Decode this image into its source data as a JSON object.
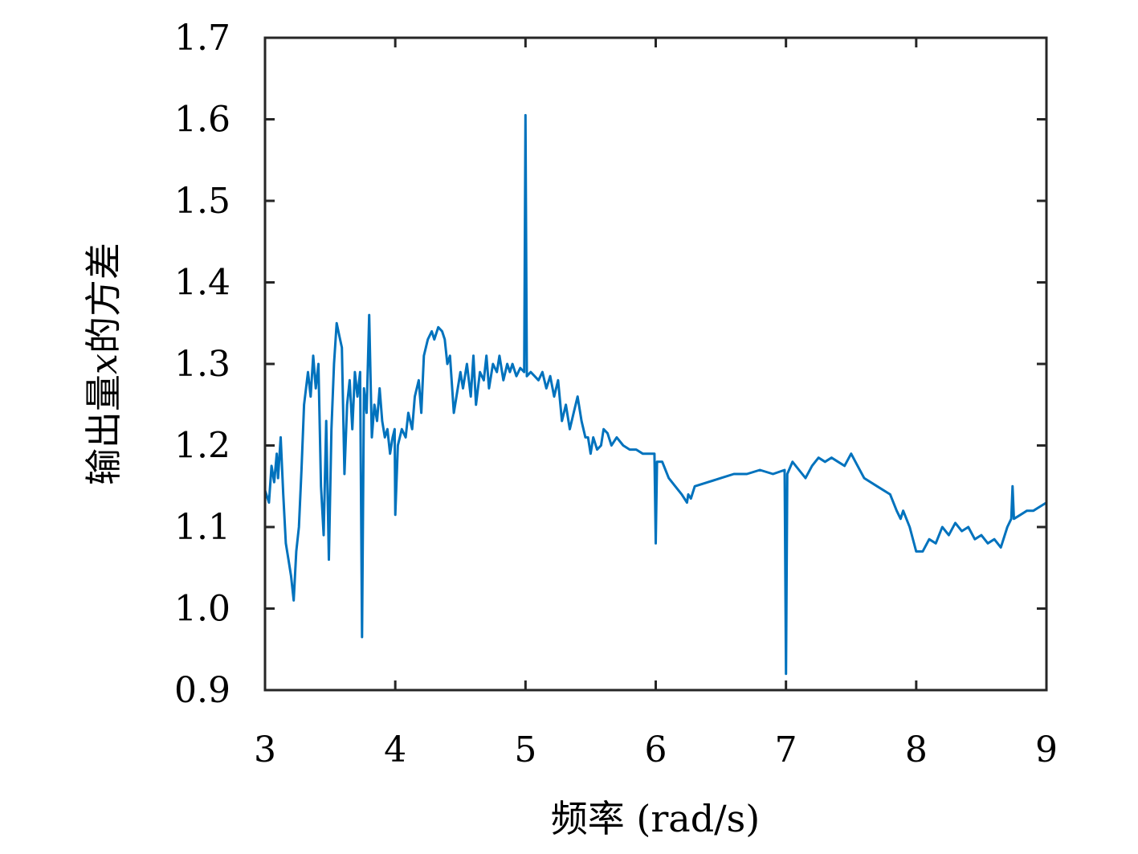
{
  "chart_data": {
    "type": "line",
    "title": "",
    "xlabel": "频率 (rad/s)",
    "ylabel": {
      "prefix": "输出量",
      "var": "x",
      "suffix": "的方差"
    },
    "xlim": [
      3,
      9
    ],
    "ylim": [
      0.9,
      1.7
    ],
    "xticks": [
      3,
      4,
      5,
      6,
      7,
      8,
      9
    ],
    "xtick_labels": [
      "3",
      "4",
      "5",
      "6",
      "7",
      "8",
      "9"
    ],
    "yticks": [
      0.9,
      1.0,
      1.1,
      1.2,
      1.3,
      1.4,
      1.5,
      1.6,
      1.7
    ],
    "ytick_labels": [
      "0.9",
      "1.0",
      "1.1",
      "1.2",
      "1.3",
      "1.4",
      "1.5",
      "1.6",
      "1.7"
    ],
    "grid": false,
    "legend": "none",
    "line_color": "#0072BD",
    "series": [
      {
        "x": [
          3.0,
          3.03,
          3.05,
          3.07,
          3.09,
          3.1,
          3.12,
          3.14,
          3.16,
          3.18,
          3.2,
          3.22,
          3.24,
          3.26,
          3.28,
          3.3,
          3.33,
          3.35,
          3.37,
          3.39,
          3.41,
          3.43,
          3.45,
          3.47,
          3.49,
          3.51,
          3.53,
          3.55,
          3.57,
          3.59,
          3.61,
          3.63,
          3.65,
          3.67,
          3.69,
          3.71,
          3.73,
          3.745,
          3.76,
          3.78,
          3.8,
          3.82,
          3.84,
          3.86,
          3.88,
          3.9,
          3.92,
          3.94,
          3.96,
          3.98,
          3.995,
          4.0,
          4.02,
          4.05,
          4.08,
          4.1,
          4.13,
          4.15,
          4.18,
          4.2,
          4.22,
          4.25,
          4.28,
          4.3,
          4.33,
          4.36,
          4.38,
          4.4,
          4.42,
          4.45,
          4.48,
          4.5,
          4.52,
          4.55,
          4.58,
          4.6,
          4.62,
          4.65,
          4.68,
          4.7,
          4.72,
          4.75,
          4.78,
          4.8,
          4.83,
          4.86,
          4.88,
          4.9,
          4.93,
          4.96,
          4.99,
          5.0,
          5.01,
          5.04,
          5.07,
          5.1,
          5.13,
          5.16,
          5.19,
          5.22,
          5.25,
          5.28,
          5.31,
          5.34,
          5.37,
          5.4,
          5.43,
          5.46,
          5.48,
          5.5,
          5.52,
          5.55,
          5.58,
          5.6,
          5.63,
          5.66,
          5.7,
          5.75,
          5.8,
          5.85,
          5.9,
          5.95,
          5.99,
          6.0,
          6.01,
          6.05,
          6.1,
          6.15,
          6.2,
          6.24,
          6.25,
          6.27,
          6.3,
          6.4,
          6.5,
          6.6,
          6.7,
          6.8,
          6.9,
          6.99,
          7.0,
          7.01,
          7.05,
          7.1,
          7.15,
          7.2,
          7.25,
          7.3,
          7.35,
          7.4,
          7.45,
          7.5,
          7.55,
          7.6,
          7.7,
          7.8,
          7.85,
          7.88,
          7.9,
          7.95,
          8.0,
          8.05,
          8.1,
          8.15,
          8.2,
          8.25,
          8.3,
          8.35,
          8.4,
          8.45,
          8.5,
          8.55,
          8.6,
          8.65,
          8.7,
          8.73,
          8.74,
          8.75,
          8.8,
          8.85,
          8.9,
          8.95,
          9.0
        ],
        "y": [
          1.145,
          1.13,
          1.175,
          1.155,
          1.19,
          1.16,
          1.21,
          1.14,
          1.08,
          1.06,
          1.04,
          1.01,
          1.07,
          1.1,
          1.17,
          1.25,
          1.29,
          1.26,
          1.31,
          1.27,
          1.3,
          1.15,
          1.09,
          1.23,
          1.06,
          1.22,
          1.3,
          1.35,
          1.335,
          1.32,
          1.165,
          1.25,
          1.28,
          1.22,
          1.29,
          1.26,
          1.29,
          0.965,
          1.27,
          1.24,
          1.36,
          1.21,
          1.25,
          1.23,
          1.27,
          1.23,
          1.21,
          1.22,
          1.19,
          1.21,
          1.22,
          1.115,
          1.2,
          1.22,
          1.21,
          1.24,
          1.22,
          1.26,
          1.28,
          1.24,
          1.31,
          1.33,
          1.34,
          1.33,
          1.345,
          1.34,
          1.33,
          1.3,
          1.31,
          1.24,
          1.27,
          1.29,
          1.27,
          1.3,
          1.26,
          1.31,
          1.25,
          1.29,
          1.28,
          1.31,
          1.27,
          1.3,
          1.29,
          1.31,
          1.28,
          1.3,
          1.29,
          1.3,
          1.285,
          1.295,
          1.29,
          1.605,
          1.285,
          1.29,
          1.285,
          1.28,
          1.29,
          1.27,
          1.285,
          1.26,
          1.28,
          1.23,
          1.25,
          1.22,
          1.24,
          1.26,
          1.23,
          1.21,
          1.21,
          1.19,
          1.21,
          1.195,
          1.2,
          1.22,
          1.215,
          1.2,
          1.21,
          1.2,
          1.195,
          1.195,
          1.19,
          1.19,
          1.19,
          1.08,
          1.18,
          1.18,
          1.16,
          1.15,
          1.14,
          1.13,
          1.14,
          1.135,
          1.15,
          1.155,
          1.16,
          1.165,
          1.165,
          1.17,
          1.165,
          1.17,
          0.92,
          1.165,
          1.18,
          1.17,
          1.16,
          1.175,
          1.185,
          1.18,
          1.185,
          1.18,
          1.175,
          1.19,
          1.175,
          1.16,
          1.15,
          1.14,
          1.12,
          1.11,
          1.12,
          1.1,
          1.07,
          1.07,
          1.085,
          1.08,
          1.1,
          1.09,
          1.105,
          1.095,
          1.1,
          1.085,
          1.09,
          1.08,
          1.085,
          1.075,
          1.1,
          1.11,
          1.15,
          1.11,
          1.115,
          1.12,
          1.12,
          1.125,
          1.13
        ]
      }
    ]
  }
}
